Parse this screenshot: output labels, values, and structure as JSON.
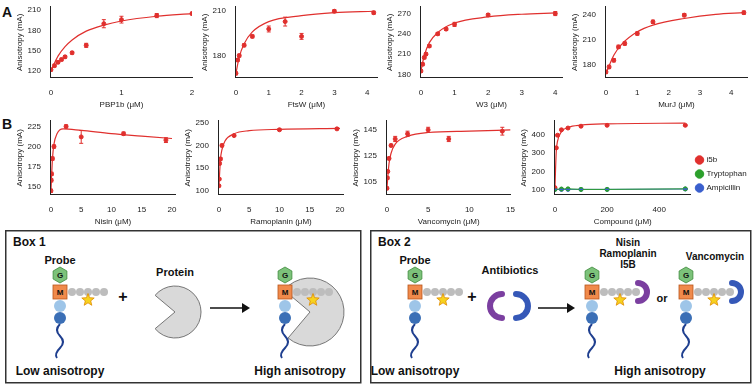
{
  "panel_labels": [
    "A",
    "B"
  ],
  "chart_data": [
    {
      "type": "scatter",
      "x_label": "PBP1b (μM)",
      "y_label": "Anisotropy (mA)",
      "color": "#e0302e",
      "xlim": [
        0,
        2
      ],
      "xticks": [
        0,
        1,
        2
      ],
      "ylim": [
        110,
        215
      ],
      "yticks": [
        120,
        150,
        180,
        210
      ],
      "grid": false,
      "x": [
        0,
        0.05,
        0.1,
        0.15,
        0.2,
        0.3,
        0.5,
        0.75,
        1,
        1.5,
        2
      ],
      "values": [
        122,
        128,
        133,
        137,
        141,
        147,
        158,
        190,
        196,
        202,
        205
      ],
      "errors": [
        2,
        2,
        2,
        2,
        2,
        2,
        3,
        6,
        5,
        3,
        2
      ],
      "fit": {
        "x": [
          0,
          0.1,
          0.2,
          0.3,
          0.5,
          0.75,
          1,
          1.5,
          2
        ],
        "values": [
          120,
          142,
          156,
          166,
          179,
          188,
          194,
          201,
          205
        ]
      }
    },
    {
      "type": "scatter",
      "x_label": "FtsW (μM)",
      "y_label": "Anisotropy (mA)",
      "color": "#e0302e",
      "xlim": [
        0,
        4.3
      ],
      "xticks": [
        0,
        1,
        2,
        3,
        4
      ],
      "ylim": [
        165,
        213
      ],
      "yticks": [
        180,
        210
      ],
      "grid": false,
      "x": [
        0,
        0.05,
        0.1,
        0.25,
        0.5,
        1,
        1.5,
        2,
        3,
        4.2
      ],
      "values": [
        168,
        177,
        180,
        187,
        193,
        198,
        203,
        193,
        210,
        209
      ],
      "errors": [
        1,
        1,
        1,
        1,
        1,
        2,
        3,
        2,
        1,
        1
      ],
      "fit": {
        "x": [
          0,
          0.1,
          0.25,
          0.5,
          1,
          2,
          3,
          4.2
        ],
        "values": [
          168,
          179,
          188,
          196,
          203,
          207,
          209,
          210
        ]
      }
    },
    {
      "type": "scatter",
      "x_label": "W3 (μM)",
      "y_label": "Anisotropy (mA)",
      "color": "#e0302e",
      "xlim": [
        0,
        4.2
      ],
      "xticks": [
        0,
        1,
        2,
        3,
        4
      ],
      "ylim": [
        175,
        280
      ],
      "yticks": [
        180,
        210,
        240,
        270
      ],
      "grid": false,
      "x": [
        0,
        0.05,
        0.1,
        0.15,
        0.25,
        0.5,
        0.75,
        1,
        2,
        4
      ],
      "values": [
        185,
        195,
        205,
        210,
        222,
        240,
        247,
        254,
        268,
        270
      ],
      "errors": [
        2,
        2,
        2,
        2,
        2,
        2,
        2,
        3,
        2,
        3
      ],
      "fit": {
        "x": [
          0,
          0.1,
          0.25,
          0.5,
          1,
          2,
          3,
          4
        ],
        "values": [
          185,
          208,
          227,
          242,
          256,
          265,
          269,
          271
        ]
      }
    },
    {
      "type": "scatter",
      "x_label": "MurJ (μM)",
      "y_label": "Anisotropy (mA)",
      "color": "#e0302e",
      "xlim": [
        0,
        4.5
      ],
      "xticks": [
        0,
        1,
        2,
        3,
        4
      ],
      "ylim": [
        165,
        250
      ],
      "yticks": [
        180,
        210,
        240
      ],
      "grid": false,
      "x": [
        0,
        0.1,
        0.25,
        0.4,
        0.6,
        1,
        1.5,
        2.5,
        4.4
      ],
      "values": [
        172,
        178,
        186,
        202,
        206,
        218,
        232,
        240,
        243
      ],
      "errors": [
        2,
        2,
        2,
        2,
        2,
        2,
        2,
        2,
        2
      ],
      "fit": {
        "x": [
          0,
          0.25,
          0.5,
          1,
          1.5,
          2.5,
          3.5,
          4.4
        ],
        "values": [
          170,
          192,
          205,
          220,
          228,
          236,
          241,
          243
        ]
      }
    },
    {
      "type": "scatter",
      "x_label": "Nisin (μM)",
      "y_label": "Anisotropy (mA)",
      "color": "#e0302e",
      "xlim": [
        0,
        20.5
      ],
      "xticks": [
        0,
        5,
        10,
        15,
        20
      ],
      "ylim": [
        140,
        232
      ],
      "yticks": [
        150,
        175,
        200,
        225
      ],
      "grid": false,
      "x": [
        0,
        0.05,
        0.1,
        0.25,
        0.5,
        2.5,
        5,
        12,
        19
      ],
      "values": [
        145,
        158,
        166,
        185,
        200,
        225,
        212,
        216,
        208
      ],
      "errors": [
        2,
        2,
        2,
        2,
        2,
        2,
        8,
        2,
        3
      ],
      "fit": {
        "x": [
          0,
          0.25,
          0.5,
          1,
          2,
          5,
          10,
          15,
          20
        ],
        "values": [
          145,
          185,
          203,
          216,
          222,
          220,
          216,
          213,
          210
        ]
      }
    },
    {
      "type": "scatter",
      "x_label": "Ramoplanin (μM)",
      "y_label": "Anisotropy (mA)",
      "color": "#e0302e",
      "xlim": [
        0,
        20.5
      ],
      "xticks": [
        0,
        5,
        10,
        15,
        20
      ],
      "ylim": [
        90,
        255
      ],
      "yticks": [
        100,
        150,
        200,
        250
      ],
      "grid": false,
      "x": [
        0,
        0.05,
        0.1,
        0.25,
        0.5,
        2.5,
        10,
        19.5
      ],
      "values": [
        110,
        125,
        160,
        170,
        200,
        222,
        235,
        237
      ],
      "errors": [
        2,
        2,
        3,
        3,
        3,
        2,
        2,
        2
      ],
      "fit": {
        "x": [
          0,
          0.25,
          0.5,
          1,
          2.5,
          5,
          10,
          20
        ],
        "values": [
          110,
          169,
          191,
          210,
          226,
          233,
          236,
          238
        ]
      }
    },
    {
      "type": "scatter",
      "x_label": "Vancomycin (μM)",
      "y_label": "Anisotropy (mA)",
      "color": "#e0302e",
      "xlim": [
        0,
        15
      ],
      "xticks": [
        0,
        5,
        10,
        15
      ],
      "ylim": [
        95,
        152
      ],
      "yticks": [
        105,
        125,
        145
      ],
      "grid": false,
      "x": [
        0,
        0.05,
        0.1,
        0.25,
        0.5,
        1,
        2.5,
        5,
        7.5,
        14
      ],
      "values": [
        100,
        108,
        113,
        123,
        133,
        138,
        142,
        145,
        138,
        144
      ],
      "errors": [
        1,
        1,
        1,
        1,
        1,
        2,
        2,
        2,
        2,
        3
      ],
      "fit": {
        "x": [
          0,
          0.25,
          0.5,
          1,
          2.5,
          5,
          10,
          15
        ],
        "values": [
          100,
          119,
          127,
          134,
          140,
          143,
          144,
          145
        ]
      }
    },
    {
      "type": "scatter",
      "x_label": "Compound (μM)",
      "y_label": "Anisotropy (mA)",
      "xlim": [
        0,
        520
      ],
      "xticks": [
        0,
        200,
        400
      ],
      "ylim": [
        70,
        480
      ],
      "yticks": [
        100,
        200,
        300,
        400
      ],
      "grid": false,
      "legend": "right",
      "series": [
        {
          "name": "i5b",
          "color": "#e0302e",
          "x": [
            0,
            5,
            10,
            25,
            50,
            100,
            200,
            500
          ],
          "values": [
            110,
            330,
            400,
            430,
            440,
            450,
            455,
            455
          ],
          "errors": [
            3,
            5,
            5,
            4,
            4,
            4,
            3,
            3
          ],
          "fit": {
            "x": [
              0,
              5,
              10,
              25,
              50,
              100,
              200,
              500
            ],
            "values": [
              110,
              310,
              367,
              420,
              443,
              456,
              463,
              467
            ]
          }
        },
        {
          "name": "Tryptophan",
          "color": "#2ca02c",
          "line_style": "solid",
          "x": [
            0,
            25,
            50,
            100,
            200,
            500
          ],
          "values": [
            100,
            102,
            103,
            100,
            100,
            103
          ],
          "errors": [
            2,
            2,
            2,
            2,
            2,
            2
          ]
        },
        {
          "name": "Ampicillin",
          "color": "#3a5fcd",
          "line_style": "solid",
          "x": [
            0,
            25,
            50,
            100,
            200,
            500
          ],
          "values": [
            100,
            100,
            100,
            100,
            100,
            102
          ],
          "errors": [
            1,
            1,
            1,
            1,
            1,
            1
          ]
        }
      ]
    }
  ],
  "probe_letters": [
    "G",
    "M"
  ],
  "boxes": [
    {
      "title": "Box 1",
      "probe": "Probe",
      "plus": "+",
      "partner": "Protein",
      "low": "Low anisotropy",
      "high": "High anisotropy"
    },
    {
      "title": "Box 2",
      "probe": "Probe",
      "plus": "+",
      "partner": "Antibiotics",
      "result_a": [
        "Nisin",
        "Ramoplanin",
        "I5B"
      ],
      "or": "or",
      "result_b": "Vancomycin",
      "low": "Low anisotropy",
      "high": "High anisotropy"
    }
  ]
}
